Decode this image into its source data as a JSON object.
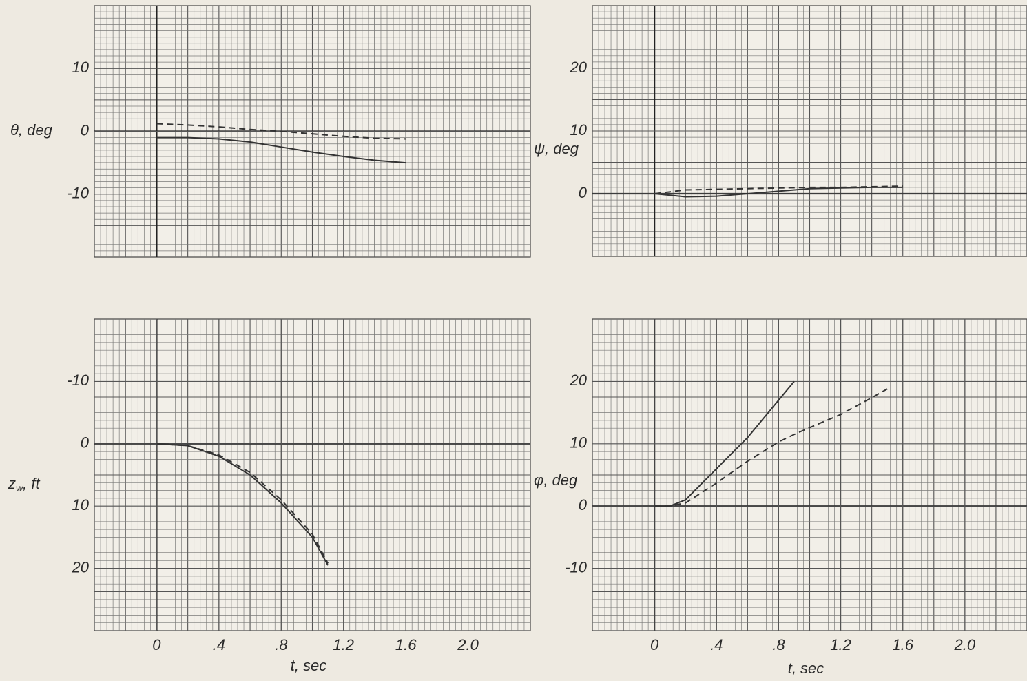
{
  "chart_data": [
    {
      "type": "line",
      "ylabel": "θ, deg",
      "x": [
        0,
        0.2,
        0.4,
        0.6,
        0.8,
        1.0,
        1.2,
        1.4,
        1.6
      ],
      "series": [
        {
          "color": "#333333",
          "linestyle": "solid",
          "values": [
            -1,
            -1,
            -1.2,
            -1.7,
            -2.5,
            -3.3,
            -4,
            -4.6,
            -5
          ]
        },
        {
          "color": "#333333",
          "linestyle": "dashed",
          "values": [
            1.2,
            1,
            0.7,
            0.3,
            0,
            -0.4,
            -0.8,
            -1.1,
            -1.2
          ]
        }
      ],
      "xlim": [
        -0.4,
        2.4
      ],
      "ylim": [
        -20,
        20
      ],
      "yticks": [
        -10,
        0,
        10
      ],
      "grid": true
    },
    {
      "type": "line",
      "ylabel": "ψ, deg",
      "x": [
        0,
        0.2,
        0.4,
        0.6,
        0.8,
        1.0,
        1.2,
        1.4,
        1.6
      ],
      "series": [
        {
          "color": "#333333",
          "linestyle": "solid",
          "values": [
            0,
            -0.5,
            -0.4,
            0,
            0.4,
            0.8,
            0.9,
            1,
            1
          ]
        },
        {
          "color": "#333333",
          "linestyle": "dashed",
          "values": [
            0,
            0.6,
            0.7,
            0.8,
            0.9,
            1,
            1,
            1.1,
            1.2
          ]
        }
      ],
      "xlim": [
        -0.4,
        2.4
      ],
      "ylim": [
        -10,
        30
      ],
      "yticks": [
        0,
        10,
        20
      ],
      "grid": true
    },
    {
      "type": "line",
      "ylabel_parts": [
        "z",
        "w",
        ", ft"
      ],
      "xlabel": "t, sec",
      "x": [
        0,
        0.2,
        0.4,
        0.6,
        0.8,
        1.0,
        1.1
      ],
      "series": [
        {
          "color": "#333333",
          "linestyle": "solid",
          "values": [
            0,
            0.3,
            2,
            5,
            9.5,
            15,
            19.5
          ]
        },
        {
          "color": "#333333",
          "linestyle": "dashed",
          "values": [
            0,
            0.3,
            1.8,
            4.6,
            9,
            14.5,
            19.2
          ]
        }
      ],
      "xlim": [
        -0.4,
        2.4
      ],
      "ylim": [
        -20,
        30
      ],
      "y_inverted": true,
      "xticks": [
        0,
        {
          "value": 0.4,
          "label": ".4"
        },
        {
          "value": 0.8,
          "label": ".8"
        },
        1.2,
        1.6,
        {
          "value": 2.0,
          "label": "2.0"
        }
      ],
      "yticks": [
        -10,
        0,
        10,
        20
      ],
      "grid": true
    },
    {
      "type": "line",
      "ylabel": "φ, deg",
      "xlabel": "t, sec",
      "x": [
        0,
        0.1,
        0.2,
        0.4,
        0.6,
        0.8,
        0.9,
        1.0,
        1.2,
        1.4,
        1.5
      ],
      "series": [
        {
          "color": "#333333",
          "linestyle": "solid",
          "values": [
            0,
            0,
            1,
            6,
            11,
            17,
            20,
            null,
            null,
            null,
            null
          ]
        },
        {
          "color": "#333333",
          "linestyle": "dashed",
          "values": [
            0,
            0,
            0.5,
            3.7,
            7.2,
            10.3,
            11.5,
            12.6,
            14.7,
            17.4,
            18.8
          ]
        }
      ],
      "xlim": [
        -0.4,
        2.4
      ],
      "ylim": [
        -20,
        30
      ],
      "xticks": [
        0,
        {
          "value": 0.4,
          "label": ".4"
        },
        {
          "value": 0.8,
          "label": ".8"
        },
        1.2,
        1.6,
        {
          "value": 2.0,
          "label": "2.0"
        }
      ],
      "yticks": [
        -10,
        0,
        10,
        20
      ],
      "grid": true
    }
  ]
}
